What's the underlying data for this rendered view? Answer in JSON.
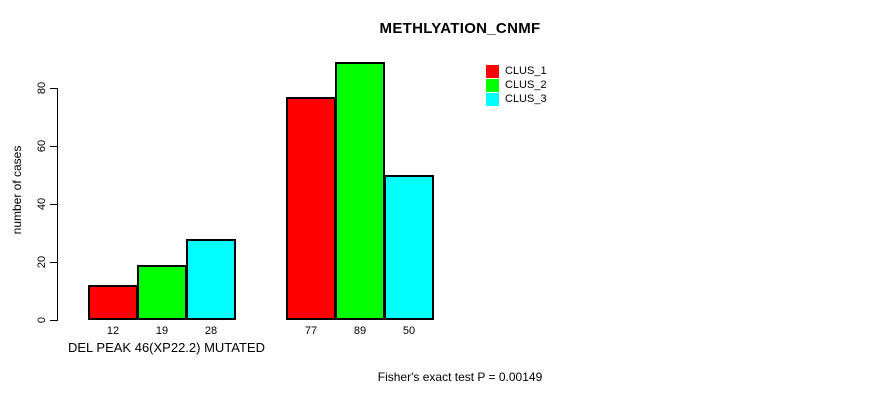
{
  "chart_data": {
    "type": "bar",
    "title": "METHLYATION_CNMF",
    "ylabel": "number of cases",
    "xlabel": "DEL PEAK 46(XP22.2) MUTATED",
    "annotation": "Fisher's exact test P = 0.00149",
    "ylim": [
      0,
      89
    ],
    "yticks": [
      0,
      20,
      40,
      60,
      80
    ],
    "grid": false,
    "legend_position": "top-right-inside",
    "values_shown_below_bars": true,
    "group_count": 2,
    "series": [
      {
        "name": "CLUS_1",
        "color": "#ff0000",
        "values": [
          12,
          77
        ]
      },
      {
        "name": "CLUS_2",
        "color": "#00ff00",
        "values": [
          19,
          89
        ]
      },
      {
        "name": "CLUS_3",
        "color": "#00ffff",
        "values": [
          28,
          50
        ]
      }
    ],
    "colors": {
      "background": "#ffffff",
      "bar_border": "#000000",
      "text": "#000000"
    }
  }
}
